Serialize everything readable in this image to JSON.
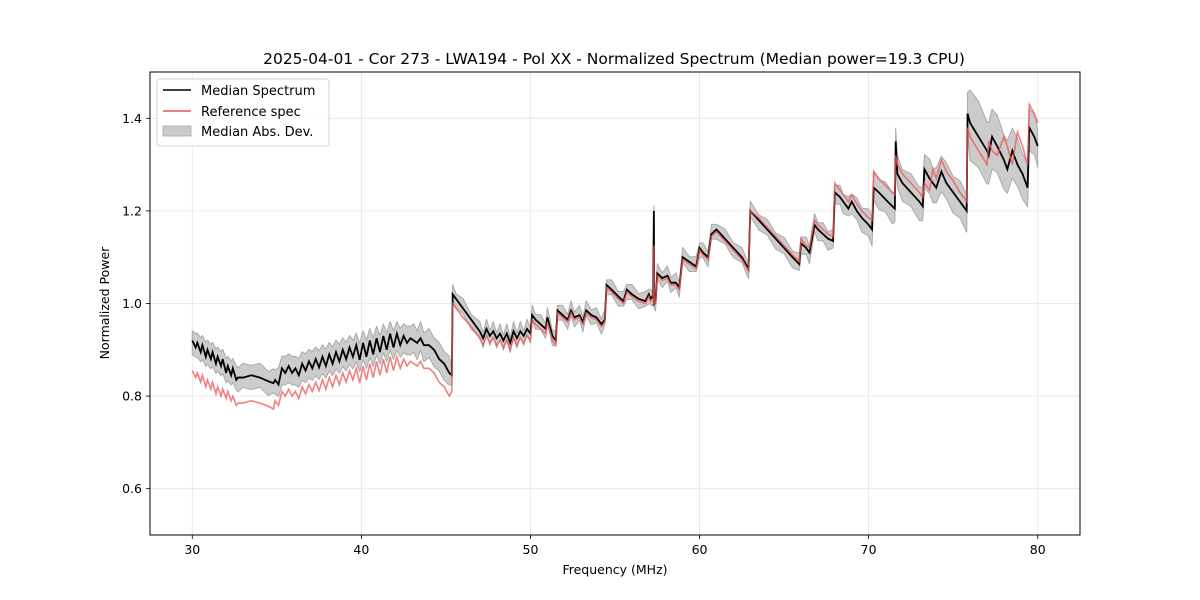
{
  "chart_data": {
    "type": "line",
    "title": "2025-04-01 - Cor 273 - LWA194 - Pol XX - Normalized Spectrum (Median power=19.3 CPU)",
    "xlabel": "Frequency (MHz)",
    "ylabel": "Normalized Power",
    "xlim": [
      27.5,
      82.5
    ],
    "ylim": [
      0.5,
      1.5
    ],
    "xticks": [
      30,
      40,
      50,
      60,
      70,
      80
    ],
    "xtick_labels": [
      "30",
      "40",
      "50",
      "60",
      "70",
      "80"
    ],
    "yticks": [
      0.6,
      0.8,
      1.0,
      1.2,
      1.4
    ],
    "ytick_labels": [
      "0.6",
      "0.8",
      "1.0",
      "1.2",
      "1.4"
    ],
    "grid": true,
    "legend_position": "top-left",
    "legend": [
      {
        "label": "Median Spectrum",
        "type": "line",
        "color": "#000000"
      },
      {
        "label": "Reference spec",
        "type": "line",
        "color": "#ee5555"
      },
      {
        "label": "Median Abs. Dev.",
        "type": "fill",
        "color": "#cccccc"
      }
    ],
    "series": [
      {
        "name": "Median Spectrum",
        "color": "#000000",
        "x": [
          30.0,
          30.2,
          30.3,
          30.5,
          30.6,
          30.8,
          30.9,
          31.1,
          31.2,
          31.4,
          31.5,
          31.7,
          31.8,
          32.0,
          32.1,
          32.3,
          32.4,
          32.6,
          32.7,
          33.0,
          33.5,
          34.0,
          34.5,
          34.8,
          34.9,
          35.1,
          35.3,
          35.5,
          35.7,
          35.9,
          36.1,
          36.3,
          36.5,
          36.7,
          36.9,
          37.1,
          37.3,
          37.5,
          37.7,
          37.9,
          38.1,
          38.3,
          38.5,
          38.7,
          38.9,
          39.1,
          39.3,
          39.5,
          39.7,
          39.9,
          40.1,
          40.3,
          40.5,
          40.7,
          40.9,
          41.1,
          41.3,
          41.5,
          41.7,
          41.9,
          42.1,
          42.3,
          42.5,
          42.7,
          42.9,
          43.1,
          43.3,
          43.5,
          43.7,
          44.0,
          44.3,
          44.6,
          44.9,
          45.2,
          45.35,
          45.4,
          45.6,
          46.0,
          46.5,
          47.0,
          47.2,
          47.4,
          47.6,
          47.8,
          48.0,
          48.2,
          48.4,
          48.6,
          48.8,
          49.0,
          49.2,
          49.4,
          49.6,
          49.8,
          50.0,
          50.1,
          50.3,
          50.6,
          50.9,
          51.0,
          51.3,
          51.5,
          51.6,
          51.9,
          52.2,
          52.4,
          52.6,
          52.9,
          53.1,
          53.3,
          53.6,
          53.9,
          54.2,
          54.4,
          54.5,
          54.8,
          55.2,
          55.5,
          55.7,
          56.0,
          56.4,
          56.8,
          57.0,
          57.1,
          57.2,
          57.25,
          57.3,
          57.32,
          57.4,
          57.5,
          57.8,
          58.1,
          58.3,
          58.6,
          58.8,
          59.0,
          59.4,
          59.8,
          60.0,
          60.2,
          60.5,
          60.7,
          61.0,
          61.5,
          62.0,
          62.5,
          62.9,
          63.0,
          63.5,
          64.0,
          64.5,
          65.0,
          65.5,
          65.9,
          66.0,
          66.3,
          66.5,
          66.8,
          67.0,
          67.3,
          67.6,
          67.9,
          68.0,
          68.3,
          68.5,
          68.8,
          69.0,
          69.3,
          69.6,
          70.0,
          70.2,
          70.3,
          70.6,
          71.0,
          71.4,
          71.55,
          71.6,
          71.7,
          72.0,
          72.5,
          73.0,
          73.2,
          73.3,
          73.6,
          73.8,
          74.0,
          74.3,
          74.6,
          75.0,
          75.4,
          75.8,
          75.85,
          76.0,
          76.5,
          77.0,
          77.1,
          77.3,
          77.6,
          78.0,
          78.2,
          78.5,
          78.8,
          79.1,
          79.4,
          79.5,
          79.8,
          80.0
        ],
        "y": [
          0.92,
          0.905,
          0.915,
          0.895,
          0.91,
          0.885,
          0.9,
          0.88,
          0.895,
          0.87,
          0.885,
          0.865,
          0.88,
          0.85,
          0.865,
          0.845,
          0.86,
          0.835,
          0.84,
          0.84,
          0.845,
          0.84,
          0.832,
          0.828,
          0.835,
          0.825,
          0.86,
          0.85,
          0.865,
          0.85,
          0.86,
          0.845,
          0.87,
          0.855,
          0.875,
          0.86,
          0.88,
          0.862,
          0.885,
          0.865,
          0.89,
          0.87,
          0.895,
          0.875,
          0.9,
          0.88,
          0.905,
          0.885,
          0.91,
          0.878,
          0.915,
          0.885,
          0.92,
          0.89,
          0.925,
          0.895,
          0.93,
          0.9,
          0.935,
          0.905,
          0.935,
          0.91,
          0.93,
          0.915,
          0.925,
          0.92,
          0.915,
          0.925,
          0.91,
          0.91,
          0.9,
          0.88,
          0.87,
          0.85,
          0.845,
          1.02,
          1.01,
          0.99,
          0.965,
          0.94,
          0.925,
          0.945,
          0.93,
          0.94,
          0.925,
          0.935,
          0.92,
          0.935,
          0.915,
          0.94,
          0.925,
          0.94,
          0.93,
          0.945,
          0.935,
          0.975,
          0.965,
          0.955,
          0.945,
          0.97,
          0.93,
          0.92,
          0.985,
          0.975,
          0.965,
          0.985,
          0.97,
          0.975,
          0.96,
          0.985,
          0.975,
          0.97,
          0.955,
          0.965,
          1.04,
          1.03,
          1.015,
          1.005,
          1.03,
          1.02,
          1.01,
          1.005,
          1.02,
          1.01,
          1.015,
          1.01,
          1.2,
          1.0,
          1.005,
          1.065,
          1.055,
          1.06,
          1.045,
          1.045,
          1.035,
          1.1,
          1.09,
          1.08,
          1.12,
          1.11,
          1.1,
          1.15,
          1.16,
          1.14,
          1.12,
          1.1,
          1.075,
          1.2,
          1.18,
          1.16,
          1.14,
          1.12,
          1.1,
          1.085,
          1.13,
          1.12,
          1.11,
          1.17,
          1.16,
          1.15,
          1.14,
          1.135,
          1.24,
          1.23,
          1.22,
          1.205,
          1.22,
          1.2,
          1.185,
          1.17,
          1.16,
          1.25,
          1.24,
          1.225,
          1.21,
          1.205,
          1.35,
          1.28,
          1.26,
          1.24,
          1.22,
          1.21,
          1.29,
          1.27,
          1.26,
          1.25,
          1.285,
          1.26,
          1.24,
          1.22,
          1.2,
          1.41,
          1.39,
          1.36,
          1.33,
          1.32,
          1.36,
          1.34,
          1.31,
          1.29,
          1.33,
          1.3,
          1.28,
          1.25,
          1.38,
          1.36,
          1.34
        ]
      },
      {
        "name": "Reference spec",
        "color": "#ee5555",
        "x": [
          30.0,
          30.2,
          30.3,
          30.5,
          30.6,
          30.8,
          30.9,
          31.1,
          31.2,
          31.4,
          31.5,
          31.7,
          31.8,
          32.0,
          32.1,
          32.3,
          32.4,
          32.6,
          32.7,
          33.0,
          33.5,
          34.0,
          34.5,
          34.8,
          34.9,
          35.1,
          35.3,
          35.5,
          35.7,
          35.9,
          36.1,
          36.3,
          36.5,
          36.7,
          36.9,
          37.1,
          37.3,
          37.5,
          37.7,
          37.9,
          38.1,
          38.3,
          38.5,
          38.7,
          38.9,
          39.1,
          39.3,
          39.5,
          39.7,
          39.9,
          40.1,
          40.3,
          40.5,
          40.7,
          40.9,
          41.1,
          41.3,
          41.5,
          41.7,
          41.9,
          42.1,
          42.3,
          42.5,
          42.7,
          42.9,
          43.1,
          43.3,
          43.5,
          43.7,
          44.0,
          44.3,
          44.6,
          44.9,
          45.2,
          45.35,
          45.4,
          45.6,
          46.0,
          46.5,
          47.0,
          47.2,
          47.4,
          47.6,
          47.8,
          48.0,
          48.2,
          48.4,
          48.6,
          48.8,
          49.0,
          49.2,
          49.4,
          49.6,
          49.8,
          50.0,
          50.1,
          50.3,
          50.6,
          50.9,
          51.0,
          51.3,
          51.5,
          51.6,
          51.9,
          52.2,
          52.4,
          52.6,
          52.9,
          53.1,
          53.3,
          53.6,
          53.9,
          54.2,
          54.4,
          54.5,
          54.8,
          55.2,
          55.5,
          55.7,
          56.0,
          56.4,
          56.8,
          57.0,
          57.1,
          57.2,
          57.25,
          57.3,
          57.32,
          57.4,
          57.5,
          57.8,
          58.1,
          58.3,
          58.6,
          58.8,
          59.0,
          59.4,
          59.8,
          60.0,
          60.2,
          60.5,
          60.7,
          61.0,
          61.5,
          62.0,
          62.5,
          62.9,
          63.0,
          63.5,
          64.0,
          64.5,
          65.0,
          65.5,
          65.9,
          66.0,
          66.3,
          66.5,
          66.8,
          67.0,
          67.3,
          67.6,
          67.9,
          68.0,
          68.3,
          68.5,
          68.8,
          69.0,
          69.3,
          69.6,
          70.0,
          70.2,
          70.3,
          70.6,
          71.0,
          71.4,
          71.55,
          71.6,
          71.7,
          72.0,
          72.5,
          73.0,
          73.2,
          73.3,
          73.6,
          73.8,
          74.0,
          74.3,
          74.6,
          75.0,
          75.4,
          75.8,
          75.85,
          76.0,
          76.5,
          77.0,
          77.1,
          77.3,
          77.6,
          78.0,
          78.2,
          78.5,
          78.8,
          79.1,
          79.4,
          79.5,
          79.8,
          80.0
        ],
        "y": [
          0.855,
          0.84,
          0.85,
          0.83,
          0.845,
          0.82,
          0.835,
          0.815,
          0.83,
          0.805,
          0.82,
          0.8,
          0.815,
          0.795,
          0.81,
          0.79,
          0.8,
          0.78,
          0.785,
          0.785,
          0.79,
          0.785,
          0.778,
          0.772,
          0.79,
          0.78,
          0.81,
          0.8,
          0.815,
          0.8,
          0.81,
          0.795,
          0.82,
          0.805,
          0.825,
          0.81,
          0.83,
          0.812,
          0.835,
          0.815,
          0.84,
          0.82,
          0.845,
          0.825,
          0.85,
          0.83,
          0.855,
          0.835,
          0.86,
          0.828,
          0.865,
          0.835,
          0.87,
          0.84,
          0.875,
          0.845,
          0.88,
          0.85,
          0.885,
          0.855,
          0.885,
          0.86,
          0.88,
          0.865,
          0.875,
          0.87,
          0.865,
          0.875,
          0.86,
          0.86,
          0.85,
          0.83,
          0.82,
          0.8,
          0.81,
          1.0,
          0.99,
          0.97,
          0.95,
          0.925,
          0.91,
          0.93,
          0.915,
          0.925,
          0.91,
          0.92,
          0.905,
          0.92,
          0.9,
          0.925,
          0.91,
          0.925,
          0.915,
          0.93,
          0.92,
          0.965,
          0.955,
          0.945,
          0.935,
          0.96,
          0.92,
          0.91,
          0.98,
          0.97,
          0.96,
          0.98,
          0.965,
          0.97,
          0.955,
          0.98,
          0.97,
          0.965,
          0.95,
          0.96,
          1.035,
          1.025,
          1.01,
          1.0,
          1.025,
          1.015,
          1.005,
          1.0,
          1.015,
          1.005,
          1.01,
          1.005,
          1.125,
          1.0,
          1.0,
          1.06,
          1.05,
          1.055,
          1.04,
          1.04,
          1.03,
          1.095,
          1.085,
          1.075,
          1.115,
          1.105,
          1.095,
          1.145,
          1.155,
          1.135,
          1.115,
          1.095,
          1.07,
          1.2,
          1.185,
          1.165,
          1.145,
          1.125,
          1.105,
          1.09,
          1.14,
          1.125,
          1.12,
          1.18,
          1.17,
          1.16,
          1.15,
          1.145,
          1.26,
          1.245,
          1.235,
          1.22,
          1.235,
          1.215,
          1.2,
          1.185,
          1.18,
          1.285,
          1.27,
          1.255,
          1.24,
          1.235,
          1.32,
          1.3,
          1.28,
          1.26,
          1.24,
          1.23,
          1.26,
          1.245,
          1.29,
          1.27,
          1.31,
          1.285,
          1.265,
          1.24,
          1.22,
          1.38,
          1.36,
          1.33,
          1.3,
          1.35,
          1.33,
          1.32,
          1.36,
          1.34,
          1.3,
          1.37,
          1.34,
          1.3,
          1.43,
          1.41,
          1.39
        ]
      }
    ],
    "band": {
      "name": "Median Abs. Dev.",
      "color": "#cccccc",
      "edge_color": "#aaaaaa",
      "note": "band centered on Median Spectrum; half-width per x below",
      "x": [
        30.0,
        35.0,
        35.1,
        45.3,
        45.35,
        63.0,
        69.0,
        70.2,
        73.0,
        75.85,
        76.0,
        80.0
      ],
      "half_width": [
        0.025,
        0.025,
        0.03,
        0.03,
        0.015,
        0.015,
        0.02,
        0.03,
        0.035,
        0.04,
        0.075,
        0.04
      ]
    }
  }
}
